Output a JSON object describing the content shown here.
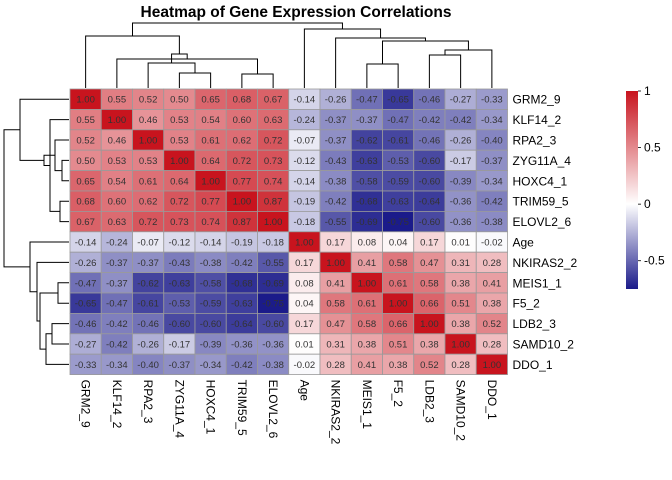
{
  "chart_data": {
    "type": "heatmap",
    "title": "Heatmap of Gene Expression Correlations",
    "rows": [
      "GRM2_9",
      "KLF14_2",
      "RPA2_3",
      "ZYG11A_4",
      "HOXC4_1",
      "TRIM59_5",
      "ELOVL2_6",
      "Age",
      "NKIRAS2_2",
      "MEIS1_1",
      "F5_2",
      "LDB2_3",
      "SAMD10_2",
      "DDO_1"
    ],
    "columns": [
      "GRM2_9",
      "KLF14_2",
      "RPA2_3",
      "ZYG11A_4",
      "HOXC4_1",
      "TRIM59_5",
      "ELOVL2_6",
      "Age",
      "NKIRAS2_2",
      "MEIS1_1",
      "F5_2",
      "LDB2_3",
      "SAMD10_2",
      "DDO_1"
    ],
    "values": [
      [
        1.0,
        0.55,
        0.52,
        0.5,
        0.65,
        0.68,
        0.67,
        -0.14,
        -0.26,
        -0.47,
        -0.65,
        -0.46,
        -0.27,
        -0.33
      ],
      [
        0.55,
        1.0,
        0.46,
        0.53,
        0.54,
        0.6,
        0.63,
        -0.24,
        -0.37,
        -0.37,
        -0.47,
        -0.42,
        -0.42,
        -0.34
      ],
      [
        0.52,
        0.46,
        1.0,
        0.53,
        0.61,
        0.62,
        0.72,
        -0.07,
        -0.37,
        -0.62,
        -0.61,
        -0.46,
        -0.26,
        -0.4
      ],
      [
        0.5,
        0.53,
        0.53,
        1.0,
        0.64,
        0.72,
        0.73,
        -0.12,
        -0.43,
        -0.63,
        -0.53,
        -0.6,
        -0.17,
        -0.37
      ],
      [
        0.65,
        0.54,
        0.61,
        0.64,
        1.0,
        0.77,
        0.74,
        -0.14,
        -0.38,
        -0.58,
        -0.59,
        -0.6,
        -0.39,
        -0.34
      ],
      [
        0.68,
        0.6,
        0.62,
        0.72,
        0.77,
        1.0,
        0.87,
        -0.19,
        -0.42,
        -0.68,
        -0.63,
        -0.64,
        -0.36,
        -0.42
      ],
      [
        0.67,
        0.63,
        0.72,
        0.73,
        0.74,
        0.87,
        1.0,
        -0.18,
        -0.55,
        -0.69,
        -0.75,
        -0.6,
        -0.36,
        -0.38
      ],
      [
        -0.14,
        -0.24,
        -0.07,
        -0.12,
        -0.14,
        -0.19,
        -0.18,
        1.0,
        0.17,
        0.08,
        0.04,
        0.17,
        0.01,
        -0.02
      ],
      [
        -0.26,
        -0.37,
        -0.37,
        -0.43,
        -0.38,
        -0.42,
        -0.55,
        0.17,
        1.0,
        0.41,
        0.58,
        0.47,
        0.31,
        0.28
      ],
      [
        -0.47,
        -0.37,
        -0.62,
        -0.63,
        -0.58,
        -0.68,
        -0.69,
        0.08,
        0.41,
        1.0,
        0.61,
        0.58,
        0.38,
        0.41
      ],
      [
        -0.65,
        -0.47,
        -0.61,
        -0.53,
        -0.59,
        -0.63,
        -0.75,
        0.04,
        0.58,
        0.61,
        1.0,
        0.66,
        0.51,
        0.38
      ],
      [
        -0.46,
        -0.42,
        -0.46,
        -0.6,
        -0.6,
        -0.64,
        -0.6,
        0.17,
        0.47,
        0.58,
        0.66,
        1.0,
        0.38,
        0.52
      ],
      [
        -0.27,
        -0.42,
        -0.26,
        -0.17,
        -0.39,
        -0.36,
        -0.36,
        0.01,
        0.31,
        0.38,
        0.51,
        0.38,
        1.0,
        0.28
      ],
      [
        -0.33,
        -0.34,
        -0.4,
        -0.37,
        -0.34,
        -0.42,
        -0.38,
        -0.02,
        0.28,
        0.41,
        0.38,
        0.52,
        0.28,
        1.0
      ]
    ],
    "color_scale": {
      "min": -0.75,
      "max": 1.0,
      "low_color": "#1b1b8a",
      "mid_color": "#ffffff",
      "high_color": "#c8141e"
    },
    "legend": {
      "placement": "right",
      "ticks": [
        1,
        0.5,
        0,
        -0.5
      ],
      "tick_labels": [
        "1",
        "0.5",
        "0",
        "-0.5"
      ]
    },
    "cell_border_color": "#9a9a9a"
  }
}
